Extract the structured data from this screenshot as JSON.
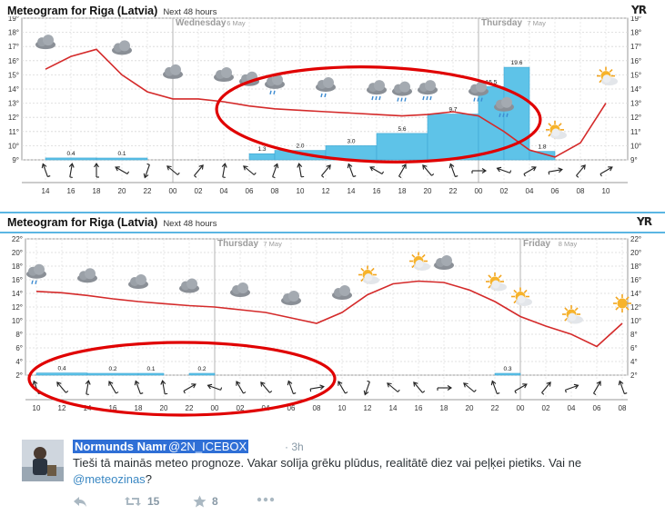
{
  "colors": {
    "accent": "#5bb6e3",
    "bar": "#5ec3e8",
    "curve": "#d42a2a",
    "annot": "#e00000",
    "handle_bg": "#2f6fd6"
  },
  "meteogram1": {
    "title": "Meteogram for Riga (Latvia)",
    "subtitle": "Next 48 hours",
    "logo": "YR",
    "day_labels": [
      {
        "name": "Wednesday",
        "date": "6 May"
      },
      {
        "name": "Thursday",
        "date": "7 May"
      }
    ],
    "x_ticks": [
      "14",
      "16",
      "18",
      "20",
      "22",
      "00",
      "02",
      "04",
      "06",
      "08",
      "10",
      "12",
      "14",
      "16",
      "18",
      "20",
      "22",
      "00",
      "02",
      "04",
      "06",
      "08",
      "10"
    ],
    "y_ticks": [
      "19°",
      "18°",
      "17°",
      "16°",
      "15°",
      "14°",
      "13°",
      "12°",
      "11°",
      "10°",
      "9°"
    ],
    "precip_labels": [
      "0.4",
      "0.1",
      "1.3",
      "2.0",
      "3.0",
      "5.6",
      "9.7",
      "15.5",
      "19.6",
      "1.8"
    ]
  },
  "meteogram2": {
    "title": "Meteogram for Riga (Latvia)",
    "subtitle": "Next 48 hours",
    "logo": "YR",
    "day_labels": [
      {
        "name": "Thursday",
        "date": "7 May"
      },
      {
        "name": "Friday",
        "date": "8 May"
      }
    ],
    "x_ticks": [
      "10",
      "12",
      "14",
      "16",
      "18",
      "20",
      "22",
      "00",
      "02",
      "04",
      "06",
      "08",
      "10",
      "12",
      "14",
      "16",
      "18",
      "20",
      "22",
      "00",
      "02",
      "04",
      "06",
      "08"
    ],
    "y_ticks": [
      "22°",
      "20°",
      "18°",
      "16°",
      "14°",
      "12°",
      "10°",
      "8°",
      "6°",
      "4°",
      "2°"
    ],
    "precip_labels": [
      "0.4",
      "0.2",
      "0.1",
      "0.2",
      "0.3"
    ]
  },
  "chart_data": [
    {
      "type": "line",
      "title": "Meteogram for Riga (Latvia)",
      "x": [
        "14",
        "16",
        "18",
        "20",
        "22",
        "00",
        "02",
        "04",
        "06",
        "08",
        "10",
        "12",
        "14",
        "16",
        "18",
        "20",
        "22",
        "00",
        "02",
        "04",
        "06",
        "08",
        "10"
      ],
      "series": [
        {
          "values": [
            15.4,
            16.3,
            16.8,
            15.0,
            13.8,
            13.3,
            13.3,
            13.1,
            12.8,
            12.6,
            12.5,
            12.4,
            12.3,
            12.2,
            12.1,
            12.2,
            12.4,
            12.1,
            11.0,
            9.7,
            9.2,
            10.2,
            13.0
          ]
        }
      ],
      "precip": [
        0.4,
        0.1,
        0,
        0,
        0,
        0,
        0,
        0,
        1.3,
        2.0,
        3.0,
        5.6,
        9.7,
        15.5,
        19.6,
        1.8
      ],
      "ylim": [
        9,
        19
      ]
    },
    {
      "type": "line",
      "title": "Meteogram for Riga (Latvia)",
      "x": [
        "10",
        "12",
        "14",
        "16",
        "18",
        "20",
        "22",
        "00",
        "02",
        "04",
        "06",
        "08",
        "10",
        "12",
        "14",
        "16",
        "18",
        "20",
        "22",
        "00",
        "02",
        "04",
        "06",
        "08"
      ],
      "series": [
        {
          "values": [
            14.3,
            14.1,
            13.7,
            13.2,
            12.8,
            12.5,
            12.2,
            12.0,
            11.6,
            11.2,
            10.4,
            9.6,
            11.2,
            13.8,
            15.4,
            15.8,
            15.6,
            14.5,
            12.8,
            10.6,
            9.2,
            8.0,
            6.2,
            9.6
          ]
        }
      ],
      "precip": [
        0.4,
        0.2,
        0.1,
        0.2,
        0.3
      ],
      "ylim": [
        2,
        22
      ]
    }
  ],
  "tweet": {
    "author_name": "Normunds Namnieks",
    "author_handle": "@2N_ICEBOX",
    "time": "· 3h",
    "text": "Tieši tā mainās meteo prognoze. Vakar solīja grēku plūdus, realitātē diez vai peļķei pietiks. Vai ne ",
    "mention": "@meteozinas",
    "text_end": "?",
    "retweet_count": "15",
    "favorite_count": "8"
  }
}
